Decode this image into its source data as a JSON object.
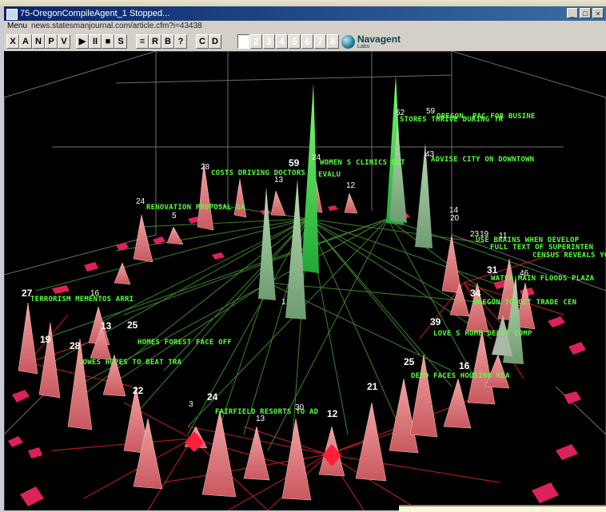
{
  "window": {
    "title": "75-OregonCompileAgent_1 Stopped...",
    "buttons": [
      "_",
      "□",
      "×"
    ]
  },
  "menubar": {
    "menu": "Menu",
    "url": "news.statesmanjournal.com/article.cfm?i=43438"
  },
  "toolbar": {
    "tools": [
      "X",
      "A",
      "N",
      "P",
      "V",
      "▶",
      "II",
      "■",
      "S",
      "≡",
      "R",
      "B",
      "?",
      "C",
      "D"
    ],
    "numbers": [
      "1",
      "2",
      "3",
      "4",
      "5",
      "6",
      "7",
      "8"
    ],
    "selected_number": "1"
  },
  "logo": {
    "brand": "Navagent",
    "sub": "Labs"
  },
  "labels": [
    "STORES THRIVE DURING TR",
    "OREGON, PAC FOR BUSINE",
    "WOMEN S CLINICS   BIT",
    "ADVISE CITY ON DOWNTOWN",
    "COSTS DRIVING DOCTORS",
    "EVALU",
    "RENOVATION PROPOSAL GA",
    "USE BRAINS WHEN DEVELOP",
    "FULL TEXT OF SUPERINTEN",
    "CENSUS REVEALS YO",
    "WATER MAIN FLOODS PLAZA",
    "OREGON TO GET TRADE CEN",
    "TERRORISM MEMENTOS ARRI",
    "HOMES  FOREST FACE OFF",
    "LOVE S  HOME DEPOT COMP",
    "LOWES HOPES TO BEAT TRA",
    "DEMO FACES HOUSING REA",
    "FAIRFIELD RESORTS TO AD"
  ],
  "numbers": [
    "62",
    "59",
    "24",
    "43",
    "28",
    "59",
    "13",
    "12",
    "24",
    "5",
    "14",
    "20",
    "23",
    "19",
    "11",
    "31",
    "46",
    "27",
    "16",
    "13",
    "25",
    "19",
    "28",
    "34",
    "39",
    "25",
    "16",
    "22",
    "24",
    "21",
    "30",
    "12",
    "3",
    "13",
    "1"
  ],
  "colors": {
    "viewport_bg": "#000000",
    "label_green": "#58ff3c",
    "spike_green": "#32e03c",
    "spike_pink": "#e87a82",
    "edge_red": "#e0262a",
    "marker_magenta": "#e8245e"
  }
}
